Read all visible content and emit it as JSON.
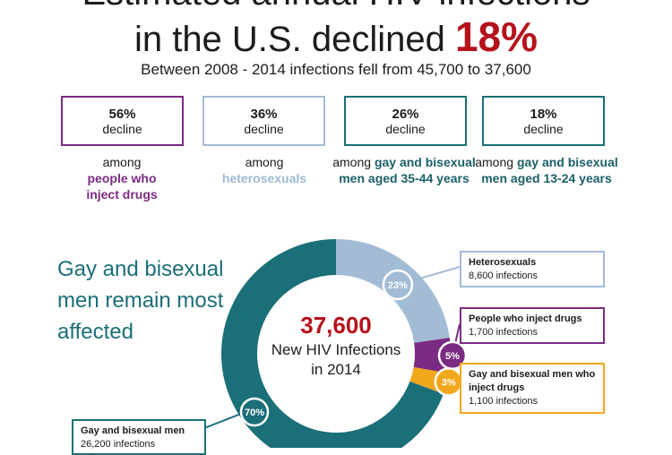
{
  "header": {
    "title_line1": "Estimated annual HIV infections",
    "title_line2_prefix": "in the U.S. declined ",
    "title_line2_pct": "18%",
    "subtitle": "Between 2008 - 2014 infections fell from 45,700 to 37,600"
  },
  "stats": [
    {
      "pct": "56%",
      "word": "decline",
      "caption_prefix": "among",
      "caption_bold": "people who inject drugs",
      "color": "#7b2b83",
      "text_color": "#7b2b83"
    },
    {
      "pct": "36%",
      "word": "decline",
      "caption_prefix": "among",
      "caption_bold": "heterosexuals",
      "color": "#a3bcd6",
      "text_color": "#9fb9d3"
    },
    {
      "pct": "26%",
      "word": "decline",
      "caption_prefix": "among",
      "caption_bold": "gay and bisexual men aged 35-44 years",
      "color": "#1b6f78",
      "text_color": "#1b5f69"
    },
    {
      "pct": "18%",
      "word": "decline",
      "caption_prefix": "among",
      "caption_bold": "gay and bisexual men aged 13-24 years",
      "color": "#1b6f78",
      "text_color": "#1b5f69"
    }
  ],
  "headline": "Gay and bisexual men remain most affected",
  "center": {
    "number": "37,600",
    "text": "New HIV Infections in 2014"
  },
  "legend": {
    "heterosexuals": {
      "title": "Heterosexuals",
      "sub": "8,600 infections",
      "color": "#a3bcd6"
    },
    "pwid": {
      "title": "People who inject drugs",
      "sub": "1,700 infections",
      "color": "#7b2b83"
    },
    "msm_pwid": {
      "title": "Gay and bisexual men who inject drugs",
      "sub": "1,100 infections",
      "color": "#f2a81d"
    },
    "msm": {
      "title": "Gay and bisexual men",
      "sub": "26,200 infections",
      "color": "#1b6f78"
    }
  },
  "chart_data": {
    "type": "pie",
    "title": "37,600 New HIV Infections in 2014",
    "categories": [
      "Heterosexuals",
      "People who inject drugs",
      "Gay and bisexual men who inject drugs",
      "Gay and bisexual men"
    ],
    "values": [
      23,
      5,
      3,
      70
    ],
    "infections": [
      8600,
      1700,
      1100,
      26200
    ],
    "labels": [
      "23%",
      "5%",
      "3%",
      "70%"
    ],
    "colors": [
      "#a3bcd6",
      "#7b2b83",
      "#f2a81d",
      "#1b6f78"
    ]
  }
}
